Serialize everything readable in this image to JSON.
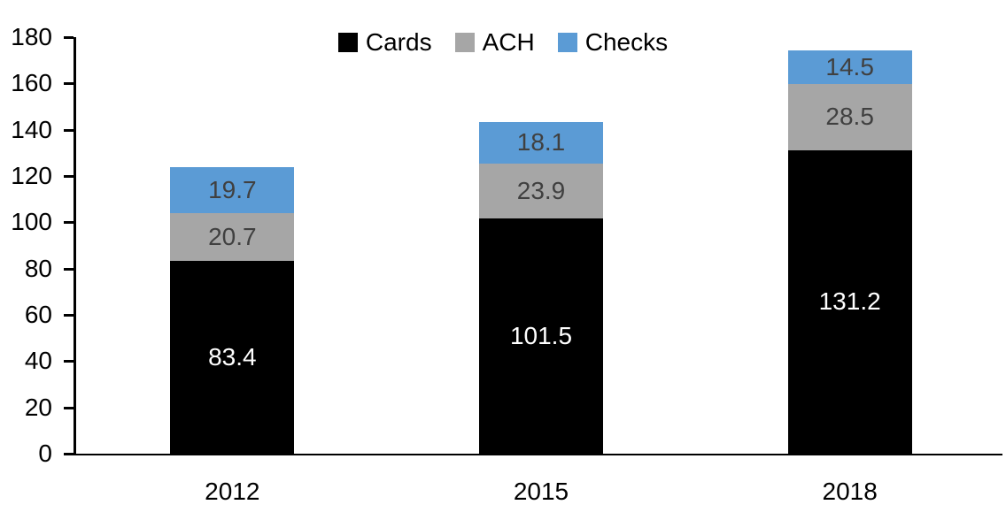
{
  "chart_data": {
    "type": "bar",
    "stacked": true,
    "title": "",
    "categories": [
      "2012",
      "2015",
      "2018"
    ],
    "series": [
      {
        "name": "Cards",
        "color": "#000000",
        "label_color": "#ffffff",
        "values": [
          83.4,
          101.5,
          131.2
        ]
      },
      {
        "name": "ACH",
        "color": "#a6a6a6",
        "label_color": "#404040",
        "values": [
          20.7,
          23.9,
          28.5
        ]
      },
      {
        "name": "Checks",
        "color": "#5b9bd5",
        "label_color": "#404040",
        "values": [
          19.7,
          18.1,
          14.5
        ]
      }
    ],
    "totals": [
      123.8,
      143.5,
      174.2
    ],
    "xlabel": "",
    "ylabel": "",
    "ylim": [
      0,
      180
    ],
    "ytick_step": 20,
    "ytick_labels": [
      "0",
      "20",
      "40",
      "60",
      "80",
      "100",
      "120",
      "140",
      "160",
      "180"
    ],
    "grid": false,
    "legend_position": "top",
    "value_label_decimals": 1,
    "axis_color": "#000000",
    "text_color": "#000000",
    "background_color": "#ffffff"
  }
}
